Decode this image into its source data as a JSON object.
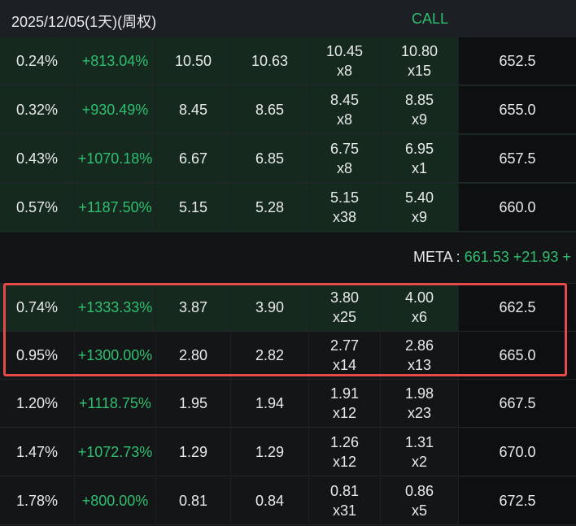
{
  "header": {
    "date": "2025/12/05(1天)(周权)",
    "call_label": "CALL"
  },
  "meta": {
    "symbol": "META :",
    "price": "661.53",
    "change": "+21.93",
    "tail": "+"
  },
  "rows_above": [
    {
      "pct": "0.24%",
      "chg": "+813.04%",
      "bid": "10.50",
      "ask": "10.63",
      "bid2": "10.45",
      "bidsz": "x8",
      "ask2": "10.80",
      "asksz": "x15",
      "strike": "652.5"
    },
    {
      "pct": "0.32%",
      "chg": "+930.49%",
      "bid": "8.45",
      "ask": "8.65",
      "bid2": "8.45",
      "bidsz": "x8",
      "ask2": "8.85",
      "asksz": "x9",
      "strike": "655.0"
    },
    {
      "pct": "0.43%",
      "chg": "+1070.18%",
      "bid": "6.67",
      "ask": "6.85",
      "bid2": "6.75",
      "bidsz": "x8",
      "ask2": "6.95",
      "asksz": "x1",
      "strike": "657.5"
    },
    {
      "pct": "0.57%",
      "chg": "+1187.50%",
      "bid": "5.15",
      "ask": "5.28",
      "bid2": "5.15",
      "bidsz": "x38",
      "ask2": "5.40",
      "asksz": "x9",
      "strike": "660.0"
    }
  ],
  "rows_below": [
    {
      "pct": "0.74%",
      "chg": "+1333.33%",
      "bid": "3.87",
      "ask": "3.90",
      "bid2": "3.80",
      "bidsz": "x25",
      "ask2": "4.00",
      "asksz": "x6",
      "strike": "662.5"
    },
    {
      "pct": "0.95%",
      "chg": "+1300.00%",
      "bid": "2.80",
      "ask": "2.82",
      "bid2": "2.77",
      "bidsz": "x14",
      "ask2": "2.86",
      "asksz": "x13",
      "strike": "665.0"
    },
    {
      "pct": "1.20%",
      "chg": "+1118.75%",
      "bid": "1.95",
      "ask": "1.94",
      "bid2": "1.91",
      "bidsz": "x12",
      "ask2": "1.98",
      "asksz": "x23",
      "strike": "667.5"
    },
    {
      "pct": "1.47%",
      "chg": "+1072.73%",
      "bid": "1.29",
      "ask": "1.29",
      "bid2": "1.26",
      "bidsz": "x12",
      "ask2": "1.31",
      "asksz": "x2",
      "strike": "670.0"
    },
    {
      "pct": "1.78%",
      "chg": "+800.00%",
      "bid": "0.81",
      "ask": "0.84",
      "bid2": "0.81",
      "bidsz": "x31",
      "ask2": "0.86",
      "asksz": "x5",
      "strike": "672.5"
    }
  ],
  "colors": {
    "up": "#2fbf71",
    "highlight_border": "#e84a4a",
    "itm_bg": "#15291f"
  }
}
